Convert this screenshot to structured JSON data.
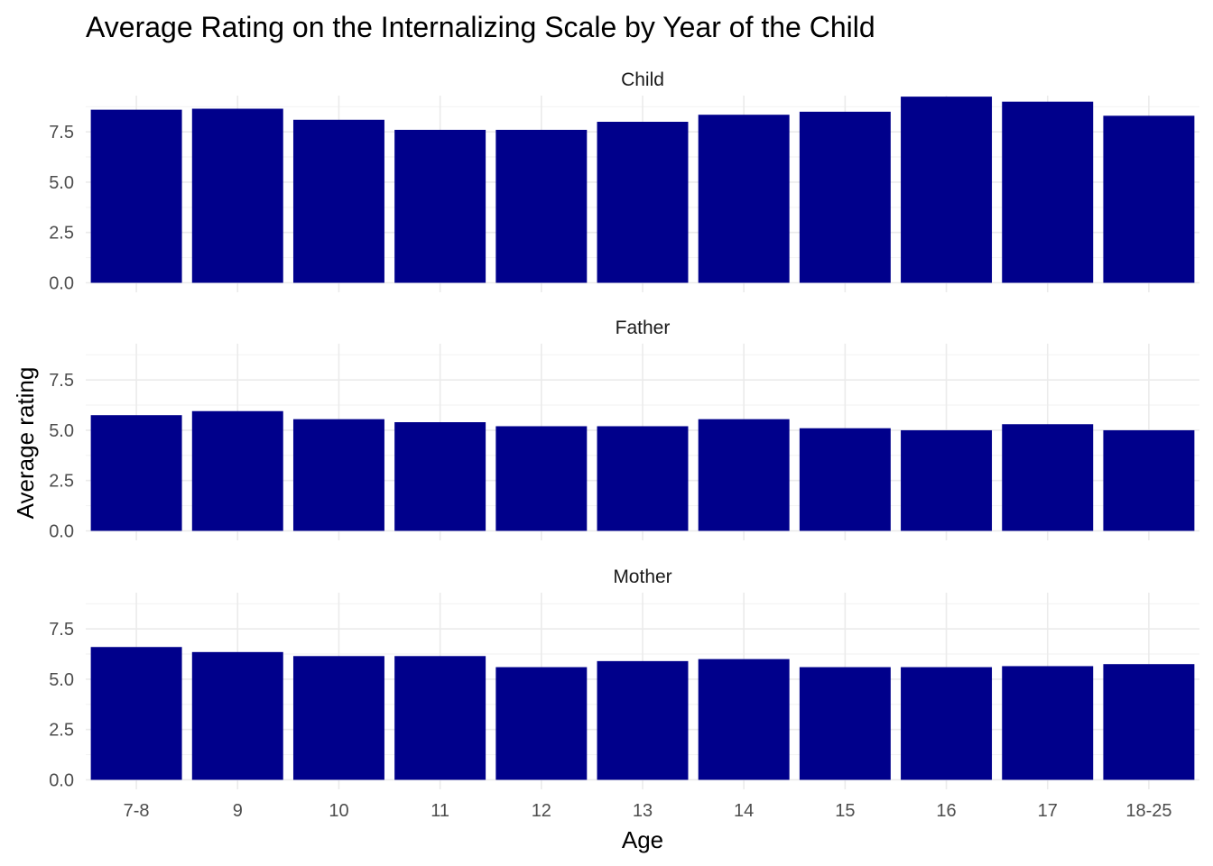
{
  "chart_data": {
    "type": "bar",
    "title": "Average Rating on the Internalizing Scale by Year of the Child",
    "xlabel": "Age",
    "ylabel": "Average rating",
    "categories": [
      "7-8",
      "9",
      "10",
      "11",
      "12",
      "13",
      "14",
      "15",
      "16",
      "17",
      "18-25"
    ],
    "ylim": [
      0,
      9.3
    ],
    "yticks": [
      "0.0",
      "2.5",
      "5.0",
      "7.5"
    ],
    "bar_color": "#00008B",
    "grid": true,
    "facets": [
      {
        "label": "Child",
        "values": [
          8.6,
          8.65,
          8.1,
          7.6,
          7.6,
          8.0,
          8.35,
          8.5,
          9.25,
          9.0,
          8.3
        ]
      },
      {
        "label": "Father",
        "values": [
          5.75,
          5.95,
          5.55,
          5.4,
          5.2,
          5.2,
          5.55,
          5.1,
          5.0,
          5.3,
          5.0
        ]
      },
      {
        "label": "Mother",
        "values": [
          6.6,
          6.35,
          6.15,
          6.15,
          5.6,
          5.9,
          6.0,
          5.6,
          5.6,
          5.65,
          5.75
        ]
      }
    ]
  }
}
